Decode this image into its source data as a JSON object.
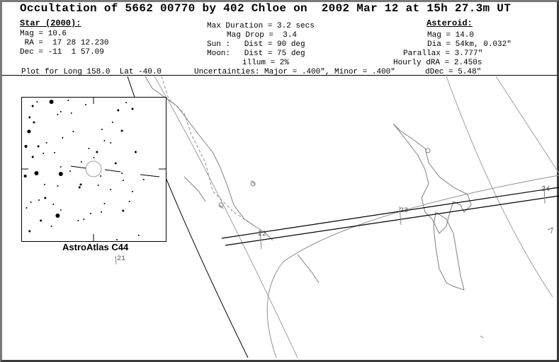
{
  "title": "Occultation of 5662 00770 by 402 Chloe on  2002 Mar 12 at 15h 27.3m UT",
  "star": {
    "heading": "Star (2000):",
    "mag": "Mag = 10.6",
    "ra": " RA =  17 28 12.230",
    "dec": "Dec = -11  1 57.09"
  },
  "event": {
    "max_duration": "Max Duration = 3.2 secs",
    "mag_drop": "Mag Drop =  3.4",
    "sun": "Sun :   Dist = 90 deg",
    "moon": "Moon:   Dist = 75 deg",
    "illum": "illum = 2%"
  },
  "asteroid": {
    "heading": "Asteroid:",
    "mag": "Mag = 14.0",
    "dia": "Dia = 54km, 0.032\"",
    "parallax": "Parallax = 3.777\"",
    "hourly_dra": "Hourly dRA = 2.450s",
    "ddec": "dDec = 5.48\""
  },
  "plot_for": "Plot for Long 158.0  Lat -40.0",
  "uncertainties": "Uncertainties: Major = .400\", Minor = .400\"",
  "inset": {
    "caption": "AstroAtlas C44"
  },
  "map": {
    "time_labels": [
      "21",
      "22",
      "23",
      "24"
    ],
    "colors": {
      "path": "#000000",
      "coast": "#808080",
      "limb": "#000000"
    }
  }
}
